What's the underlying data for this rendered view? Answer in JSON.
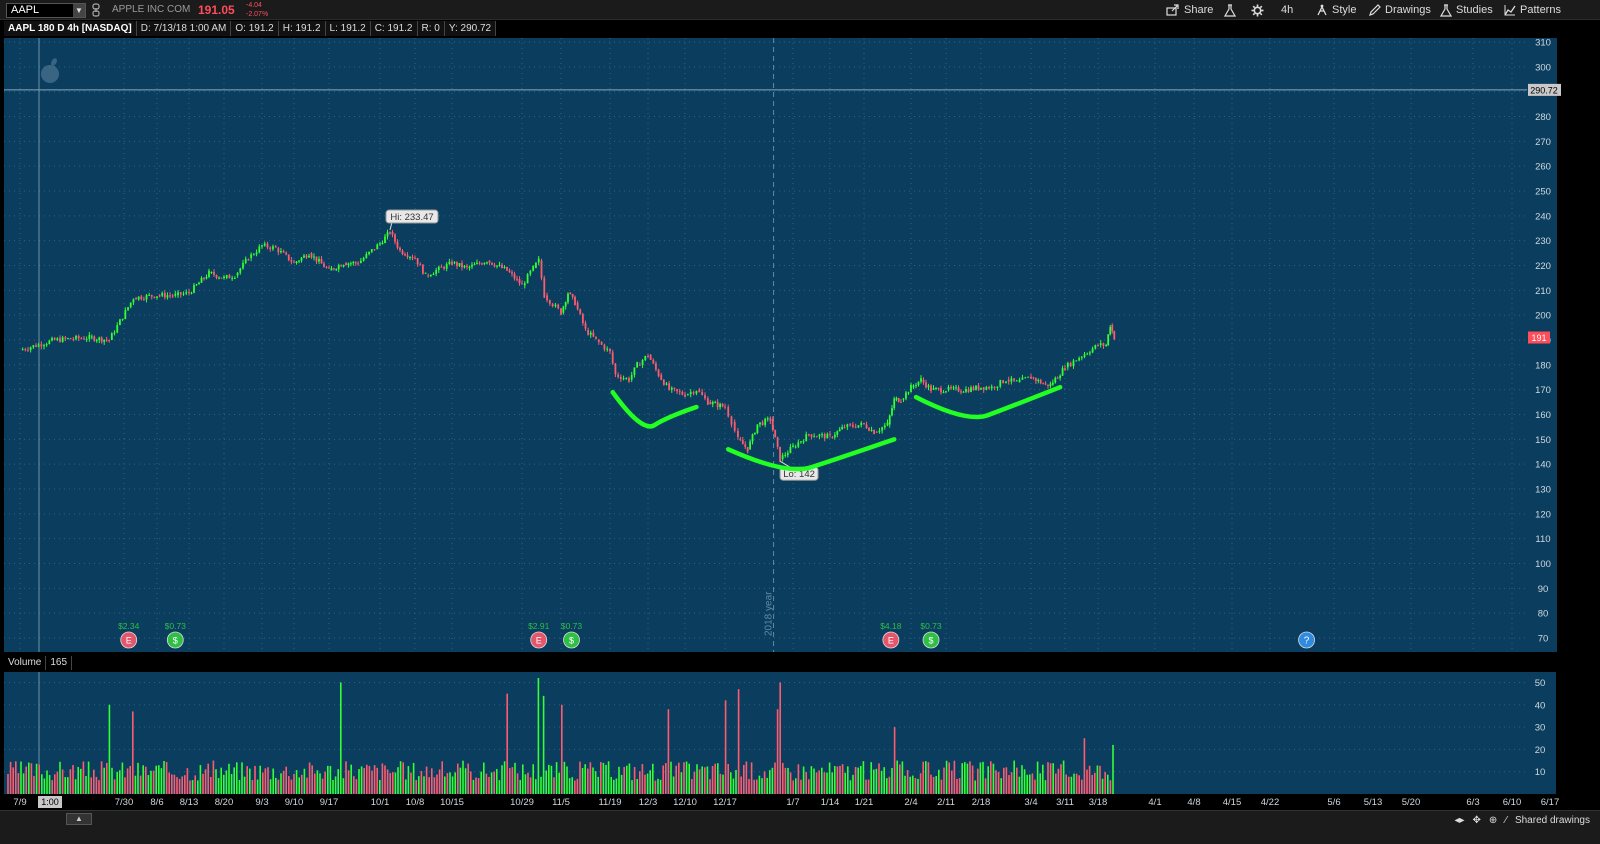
{
  "toolbar": {
    "symbol": "AAPL",
    "company": "APPLE INC COM",
    "last_price": "191.05",
    "change": "-4.04",
    "change_pct": "-2.07%",
    "share_label": "Share",
    "timeframe_label": "4h",
    "style_label": "Style",
    "drawings_label": "Drawings",
    "studies_label": "Studies",
    "patterns_label": "Patterns"
  },
  "infobar": {
    "title": "AAPL 180 D 4h [NASDAQ]",
    "date": "D: 7/13/18 1:00 AM",
    "open": "O: 191.2",
    "high": "H: 191.2",
    "low": "L: 191.2",
    "close": "C: 191.2",
    "range": "R: 0",
    "y": "Y: 290.72"
  },
  "volume_label": {
    "name": "Volume",
    "value": "165"
  },
  "bottom_bar": {
    "shared_drawings": "Shared drawings"
  },
  "colors": {
    "up": "#33ff33",
    "down": "#ff5b6e",
    "pane_bg": "#0b3d5f",
    "annotation": "#22ff22"
  },
  "chart_data": [
    {
      "type": "candlestick",
      "title": "AAPL 180 D 4h [NASDAQ]",
      "ylim": [
        65,
        312
      ],
      "y_ticks": [
        70,
        80,
        90,
        100,
        110,
        120,
        130,
        140,
        150,
        160,
        170,
        180,
        190,
        200,
        210,
        220,
        230,
        240,
        250,
        260,
        270,
        280,
        290,
        300,
        310
      ],
      "x_ticks": [
        "7/9",
        "7/30",
        "8/6",
        "8/13",
        "8/20",
        "9/3",
        "9/10",
        "9/17",
        "10/1",
        "10/8",
        "10/15",
        "10/29",
        "11/5",
        "11/19",
        "12/3",
        "12/10",
        "12/17",
        "1/7",
        "1/14",
        "1/21",
        "2/4",
        "2/11",
        "2/18",
        "3/4",
        "3/11",
        "3/18",
        "4/1",
        "4/8",
        "4/15",
        "4/22",
        "5/6",
        "5/13",
        "5/20",
        "6/3",
        "6/10",
        "6/17"
      ],
      "cursor_x_label": "1:00",
      "crosshair_price": "290.72",
      "last_price_marker": "191",
      "year_marker": "2018 year",
      "price_path": [
        [
          "7/9",
          186
        ],
        [
          "7/16",
          190
        ],
        [
          "7/23",
          191
        ],
        [
          "7/27",
          190
        ],
        [
          "8/1",
          207
        ],
        [
          "8/6",
          208
        ],
        [
          "8/10",
          208
        ],
        [
          "8/13",
          209
        ],
        [
          "8/17",
          217
        ],
        [
          "8/20",
          215
        ],
        [
          "8/24",
          216
        ],
        [
          "8/29",
          223
        ],
        [
          "9/3",
          228
        ],
        [
          "9/6",
          227
        ],
        [
          "9/10",
          221
        ],
        [
          "9/13",
          225
        ],
        [
          "9/17",
          218
        ],
        [
          "9/21",
          221
        ],
        [
          "9/25",
          221
        ],
        [
          "10/1",
          229
        ],
        [
          "10/3",
          233.47
        ],
        [
          "10/5",
          226
        ],
        [
          "10/8",
          223
        ],
        [
          "10/10",
          216
        ],
        [
          "10/15",
          221
        ],
        [
          "10/18",
          219
        ],
        [
          "10/22",
          222
        ],
        [
          "10/26",
          218
        ],
        [
          "10/29",
          212
        ],
        [
          "10/31",
          219
        ],
        [
          "11/1",
          222
        ],
        [
          "11/2",
          208
        ],
        [
          "11/5",
          201
        ],
        [
          "11/7",
          209
        ],
        [
          "11/9",
          205
        ],
        [
          "11/12",
          194
        ],
        [
          "11/15",
          190
        ],
        [
          "11/19",
          185
        ],
        [
          "11/21",
          176
        ],
        [
          "11/26",
          174
        ],
        [
          "11/29",
          180
        ],
        [
          "12/3",
          184
        ],
        [
          "12/5",
          176
        ],
        [
          "12/7",
          170
        ],
        [
          "12/10",
          168
        ],
        [
          "12/12",
          170
        ],
        [
          "12/14",
          165
        ],
        [
          "12/17",
          163
        ],
        [
          "12/19",
          157
        ],
        [
          "12/21",
          150
        ],
        [
          "12/24",
          146
        ],
        [
          "12/27",
          156
        ],
        [
          "12/31",
          158
        ],
        [
          "1/3",
          142
        ],
        [
          "1/7",
          147
        ],
        [
          "1/10",
          152
        ],
        [
          "1/14",
          151
        ],
        [
          "1/17",
          155
        ],
        [
          "1/21",
          156
        ],
        [
          "1/24",
          153
        ],
        [
          "1/28",
          156
        ],
        [
          "1/30",
          166
        ],
        [
          "2/1",
          166
        ],
        [
          "2/4",
          171
        ],
        [
          "2/6",
          174
        ],
        [
          "2/8",
          170
        ],
        [
          "2/11",
          170
        ],
        [
          "2/15",
          170
        ],
        [
          "2/18",
          171
        ],
        [
          "2/21",
          171
        ],
        [
          "2/25",
          174
        ],
        [
          "2/28",
          173
        ],
        [
          "3/4",
          175
        ],
        [
          "3/7",
          172
        ],
        [
          "3/8",
          172
        ],
        [
          "3/11",
          179
        ],
        [
          "3/14",
          183
        ],
        [
          "3/18",
          188
        ],
        [
          "3/20",
          188
        ],
        [
          "3/21",
          196
        ],
        [
          "3/22",
          191
        ]
      ],
      "annotations": [
        {
          "text": "Hi: 233.47",
          "date": "10/3",
          "value": 233.47
        },
        {
          "text": "Lo: 142",
          "date": "1/3",
          "value": 142
        }
      ],
      "dividends": [
        {
          "label": "$2.34",
          "date": "7/31",
          "kind": "earnings"
        },
        {
          "label": "$0.73",
          "date": "8/10",
          "kind": "dividend"
        },
        {
          "label": "$2.91",
          "date": "11/1",
          "kind": "earnings"
        },
        {
          "label": "$0.73",
          "date": "11/8",
          "kind": "dividend"
        },
        {
          "label": "$4.18",
          "date": "1/29",
          "kind": "earnings"
        },
        {
          "label": "$0.73",
          "date": "2/8",
          "kind": "dividend"
        },
        {
          "label": "?",
          "date": "4/30",
          "kind": "upcoming"
        }
      ],
      "drawn_curves": [
        {
          "from": [
            "11/20",
            169
          ],
          "to": [
            "12/12",
            163
          ]
        },
        {
          "from": [
            "12/18",
            146
          ],
          "to": [
            "1/30",
            150
          ]
        },
        {
          "from": [
            "2/5",
            167
          ],
          "to": [
            "3/10",
            171
          ]
        }
      ]
    },
    {
      "type": "bar",
      "title": "Volume",
      "ylim": [
        0,
        55
      ],
      "y_ticks": [
        10,
        20,
        30,
        40,
        50
      ],
      "spikes": [
        [
          "7/27",
          40
        ],
        [
          "8/1",
          37
        ],
        [
          "9/20",
          50
        ],
        [
          "10/26",
          45
        ],
        [
          "11/1",
          52
        ],
        [
          "11/2",
          44
        ],
        [
          "11/5",
          40
        ],
        [
          "12/7",
          38
        ],
        [
          "12/17",
          42
        ],
        [
          "12/21",
          47
        ],
        [
          "1/2",
          38
        ],
        [
          "1/3",
          50
        ],
        [
          "1/30",
          30
        ],
        [
          "3/15",
          25
        ],
        [
          "3/22",
          22
        ]
      ]
    }
  ]
}
